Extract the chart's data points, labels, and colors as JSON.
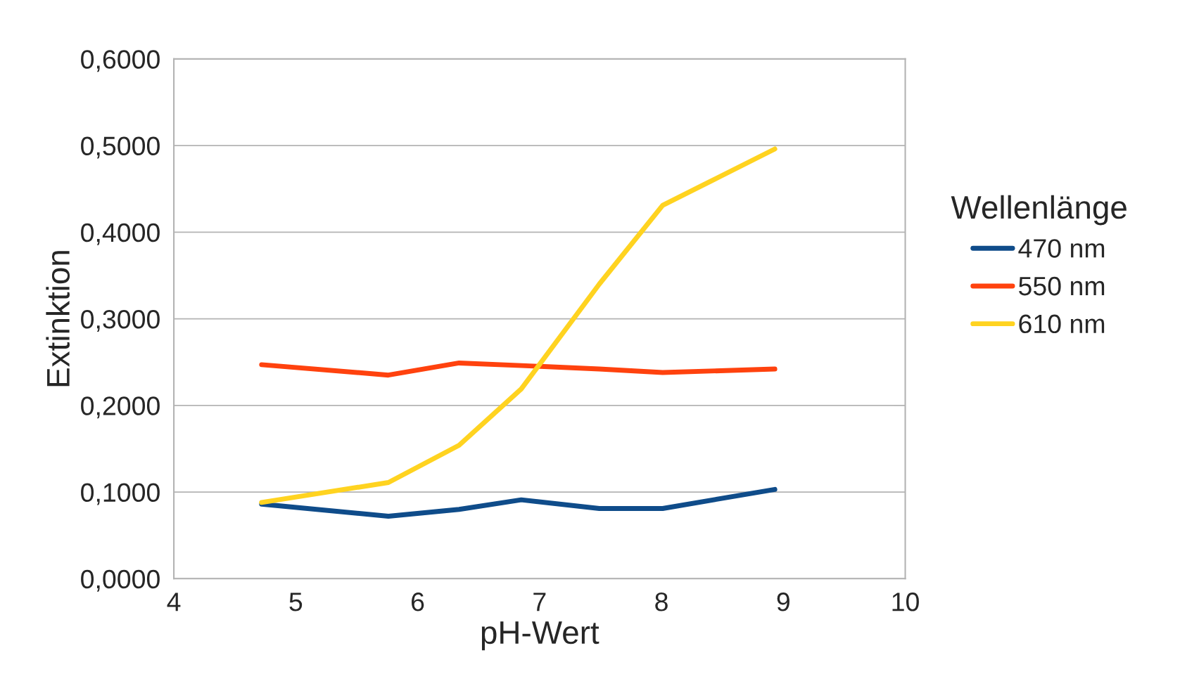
{
  "chart_data": {
    "type": "line",
    "xlabel": "pH-Wert",
    "ylabel": "Extinktion",
    "legend_title": "Wellenlänge",
    "legend": "right",
    "grid": "y",
    "marker": "none",
    "line_style": "solid",
    "x": [
      4.72,
      5.76,
      6.34,
      6.85,
      7.49,
      8.01,
      8.93
    ],
    "series": [
      {
        "name": "470 nm",
        "color": "#0f4c8a",
        "values": [
          0.086,
          0.072,
          0.08,
          0.091,
          0.081,
          0.081,
          0.103
        ]
      },
      {
        "name": "550 nm",
        "color": "#ff420e",
        "values": [
          0.247,
          0.235,
          0.249,
          0.246,
          0.242,
          0.238,
          0.242
        ]
      },
      {
        "name": "610 nm",
        "color": "#ffd320",
        "values": [
          0.088,
          0.111,
          0.154,
          0.219,
          0.34,
          0.431,
          0.496
        ]
      }
    ],
    "xlim": [
      4,
      10
    ],
    "xticks": [
      4,
      5,
      6,
      7,
      8,
      9,
      10
    ],
    "ylim": [
      0,
      0.6
    ],
    "yticks": [
      {
        "value": 0,
        "label": "0,0000"
      },
      {
        "value": 0.1,
        "label": "0,1000"
      },
      {
        "value": 0.2,
        "label": "0,2000"
      },
      {
        "value": 0.3,
        "label": "0,3000"
      },
      {
        "value": 0.4,
        "label": "0,4000"
      },
      {
        "value": 0.5,
        "label": "0,5000"
      },
      {
        "value": 0.6,
        "label": "0,6000"
      }
    ]
  }
}
